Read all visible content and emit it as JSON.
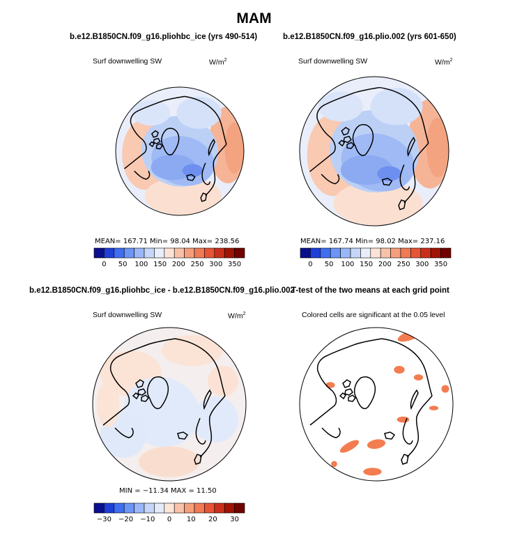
{
  "figure": {
    "title": "MAM"
  },
  "panels": [
    {
      "title": "b.e12.B1850CN.f09_g16.pliohbc_ice (yrs 490-514)",
      "variable": "Surf downwelling SW",
      "units": "W/m",
      "units_exp": "2",
      "stats": "MEAN= 167.71   Min=  98.04   Max= 238.56"
    },
    {
      "title": "b.e12.B1850CN.f09_g16.plio.002 (yrs 601-650)",
      "variable": "Surf downwelling SW",
      "units": "W/m",
      "units_exp": "2",
      "stats": "MEAN= 167.74   Min=  98.02   Max= 237.16"
    },
    {
      "title": "b.e12.B1850CN.f09_g16.pliohbc_ice - b.e12.B1850CN.f09_g16.plio.002",
      "variable": "Surf downwelling SW",
      "units": "W/m",
      "units_exp": "2",
      "stats": "MIN = −11.34  MAX =  11.50"
    },
    {
      "title": "T-test of the two means at each grid point",
      "variable": "Colored cells are significant at the 0.05 level"
    }
  ],
  "chart_data": [
    {
      "type": "heatmap",
      "projection": "polar stereographic (north)",
      "title": "b.e12.B1850CN.f09_g16.pliohbc_ice (yrs 490-514)",
      "variable": "Surf downwelling SW",
      "units": "W/m2",
      "mean": 167.71,
      "min": 98.04,
      "max": 238.56,
      "colorbar_ticks": [
        "0",
        "50",
        "100",
        "150",
        "200",
        "250",
        "300",
        "350"
      ],
      "colorbar_colors": [
        "#0a0f8c",
        "#1f3fd6",
        "#3f6ef0",
        "#6d95f5",
        "#9ab7f7",
        "#c6d6f8",
        "#e8eefa",
        "#fbe3d6",
        "#f9c2a8",
        "#f59e7c",
        "#f07a55",
        "#e65535",
        "#c9301c",
        "#a01405",
        "#6f0400"
      ]
    },
    {
      "type": "heatmap",
      "projection": "polar stereographic (north)",
      "title": "b.e12.B1850CN.f09_g16.plio.002 (yrs 601-650)",
      "variable": "Surf downwelling SW",
      "units": "W/m2",
      "mean": 167.74,
      "min": 98.02,
      "max": 237.16,
      "colorbar_ticks": [
        "0",
        "50",
        "100",
        "150",
        "200",
        "250",
        "300",
        "350"
      ]
    },
    {
      "type": "heatmap",
      "projection": "polar stereographic (north)",
      "title": "b.e12.B1850CN.f09_g16.pliohbc_ice - b.e12.B1850CN.f09_g16.plio.002",
      "variable": "Surf downwelling SW",
      "units": "W/m2",
      "min": -11.34,
      "max": 11.5,
      "colorbar_ticks": [
        "−30",
        "−20",
        "−10",
        "0",
        "10",
        "20",
        "30"
      ]
    },
    {
      "type": "heatmap",
      "projection": "polar stereographic (north)",
      "title": "T-test of the two means at each grid point",
      "note": "Colored cells are significant at the 0.05 level",
      "significance_level": 0.05
    }
  ],
  "colors": {
    "abs_scale": [
      "#0a0f8c",
      "#1f3fd6",
      "#3f6ef0",
      "#6d95f5",
      "#9ab7f7",
      "#c6d6f8",
      "#e8eefa",
      "#fbe3d6",
      "#f9c2a8",
      "#f59e7c",
      "#f07a55",
      "#e65535",
      "#c9301c",
      "#a01405",
      "#6f0400"
    ],
    "diff_scale": [
      "#0a0f8c",
      "#1f3fd6",
      "#3f6ef0",
      "#6d95f5",
      "#9ab7f7",
      "#c6d6f8",
      "#e2ebfa",
      "#fbe6d9",
      "#f9c2a8",
      "#f59e7c",
      "#f07a55",
      "#e65535",
      "#c9301c",
      "#a01405",
      "#6f0400"
    ],
    "significant": "#f37d50"
  }
}
